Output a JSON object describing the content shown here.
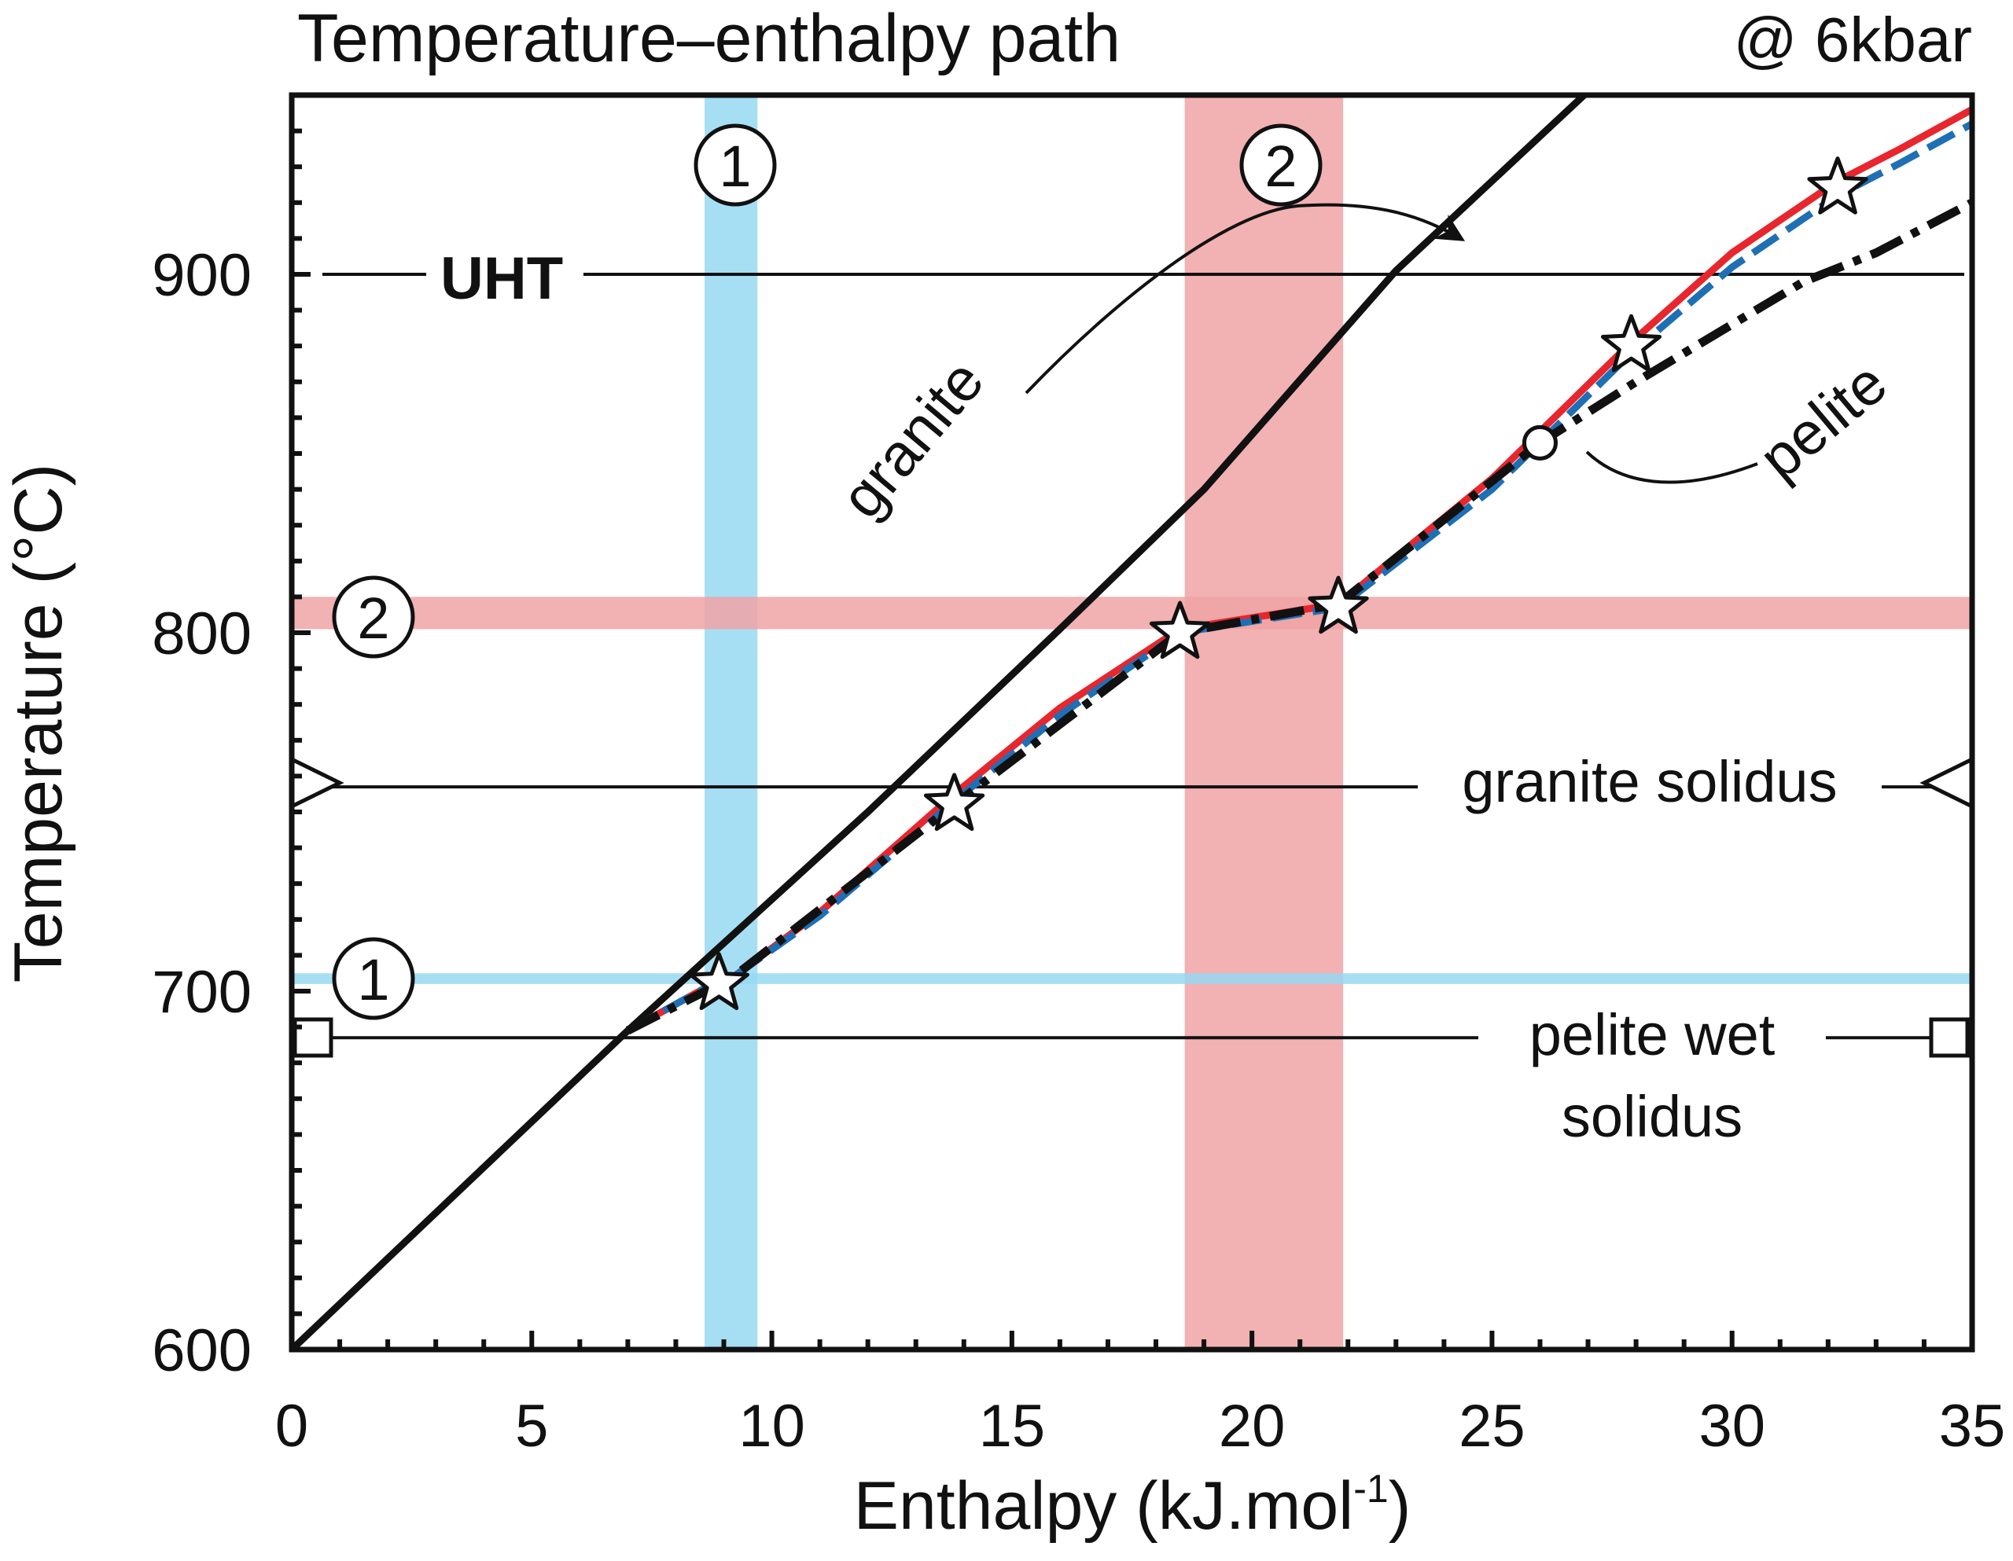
{
  "chart_data": {
    "type": "line",
    "title": "Temperature–enthalpy path",
    "subtitle": "@ 6kbar",
    "xlabel": "Enthalpy (kJ.mol",
    "xlabel_sup": "-1",
    "xlabel_close": ")",
    "ylabel": "Temperature (°C)",
    "xlim": [
      0,
      35
    ],
    "ylim": [
      600,
      950
    ],
    "xticks": [
      0,
      5,
      10,
      15,
      20,
      25,
      30,
      35
    ],
    "yticks": [
      600,
      700,
      800,
      900
    ],
    "xticklabels": [
      "0",
      "5",
      "10",
      "15",
      "20",
      "25",
      "30",
      "35"
    ],
    "yticklabels": [
      "600",
      "700",
      "800",
      "900"
    ],
    "grid": false,
    "colors": {
      "red": "#e8262d",
      "blue": "#1f6fb5",
      "black": "#111111",
      "band1": "#97d9f2",
      "band2": "#f0a3a5"
    },
    "series": [
      {
        "name": "granite",
        "style": "solid-black",
        "x": [
          0,
          7,
          12,
          16,
          19,
          23,
          27
        ],
        "y": [
          600,
          689,
          750,
          801,
          840,
          901,
          951
        ]
      },
      {
        "name": "",
        "style": "solid-red",
        "x": [
          7,
          8.9,
          9.2,
          11,
          13.8,
          16,
          18.5,
          21.8,
          25,
          27.9,
          30,
          32.2,
          33.5,
          35
        ],
        "y": [
          689,
          703,
          704,
          722,
          755,
          779,
          801,
          808,
          843,
          881,
          906,
          926,
          935,
          946
        ]
      },
      {
        "name": "",
        "style": "dashed-blue",
        "x": [
          7,
          8.9,
          9.2,
          11,
          13.8,
          16,
          18.5,
          21.8,
          25,
          27.9,
          30,
          32.2,
          33.5,
          35
        ],
        "y": [
          689,
          703,
          704,
          721,
          753,
          777,
          800,
          807,
          840,
          878,
          902,
          922,
          931,
          942
        ]
      },
      {
        "name": "pelite",
        "style": "dashdot-black",
        "x": [
          7,
          9.2,
          13.8,
          18.5,
          21.8,
          26,
          28,
          30,
          31.5,
          33,
          34,
          35
        ],
        "y": [
          689,
          704,
          752,
          800,
          808,
          853,
          870,
          886,
          898,
          906,
          913,
          920
        ]
      }
    ],
    "stars": [
      {
        "x": 8.9,
        "y": 702
      },
      {
        "x": 13.8,
        "y": 752
      },
      {
        "x": 18.5,
        "y": 800
      },
      {
        "x": 21.8,
        "y": 807
      },
      {
        "x": 27.9,
        "y": 880
      },
      {
        "x": 32.2,
        "y": 924
      }
    ],
    "open_circle": {
      "x": 26,
      "y": 853
    },
    "horizontal_lines": [
      {
        "label": "UHT",
        "y": 900
      },
      {
        "label": "granite solidus",
        "y": 757
      },
      {
        "label": "pelite wet solidus",
        "label_line1": "pelite wet",
        "label_line2": "solidus",
        "y": 687
      }
    ],
    "bands": [
      {
        "label": "1",
        "orientation": "vertical",
        "x_range": [
          8.6,
          9.7
        ]
      },
      {
        "label": "2",
        "orientation": "vertical",
        "x_range": [
          18.6,
          21.9
        ]
      },
      {
        "label": "1",
        "orientation": "horizontal",
        "y_range": [
          702,
          705
        ]
      },
      {
        "label": "2",
        "orientation": "horizontal",
        "y_range": [
          801,
          810
        ]
      }
    ],
    "annotations": {
      "granite_label": "granite",
      "pelite_label": "pelite"
    }
  }
}
